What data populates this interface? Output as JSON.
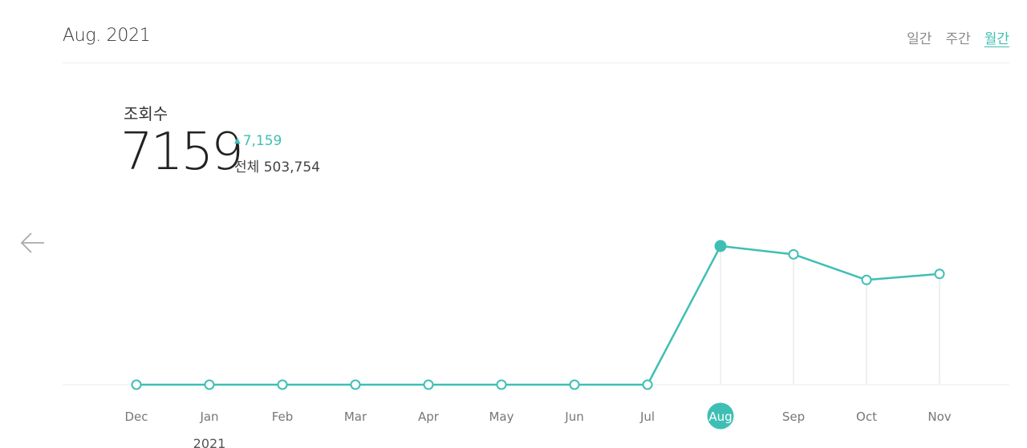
{
  "header": {
    "period_title": "Aug. 2021",
    "tabs": [
      {
        "label": "일간",
        "active": false
      },
      {
        "label": "주간",
        "active": false
      },
      {
        "label": "월간",
        "active": true
      }
    ]
  },
  "metric": {
    "label": "조회수",
    "value": "7159",
    "change": "7,159",
    "change_icon": "triangle-up-icon",
    "total_label": "전체",
    "total_value": "503,754"
  },
  "nav": {
    "prev_icon": "arrow-left-icon"
  },
  "colors": {
    "accent": "#3fbfb4",
    "baseline": "#ececec",
    "drop_line": "#e2e2e2",
    "axis_text": "#777777"
  },
  "chart_data": {
    "type": "line",
    "categories": [
      "Dec",
      "Jan",
      "Feb",
      "Mar",
      "Apr",
      "May",
      "Jun",
      "Jul",
      "Aug",
      "Sep",
      "Oct",
      "Nov"
    ],
    "category_sublabels": {
      "1": "2021"
    },
    "series": [
      {
        "values": [
          0,
          0,
          0,
          0,
          0,
          0,
          0,
          0,
          7159,
          6730,
          5410,
          5720
        ]
      }
    ],
    "selected_index": 8,
    "ylim": [
      0,
      7159
    ],
    "grid": false,
    "legend": "none"
  }
}
